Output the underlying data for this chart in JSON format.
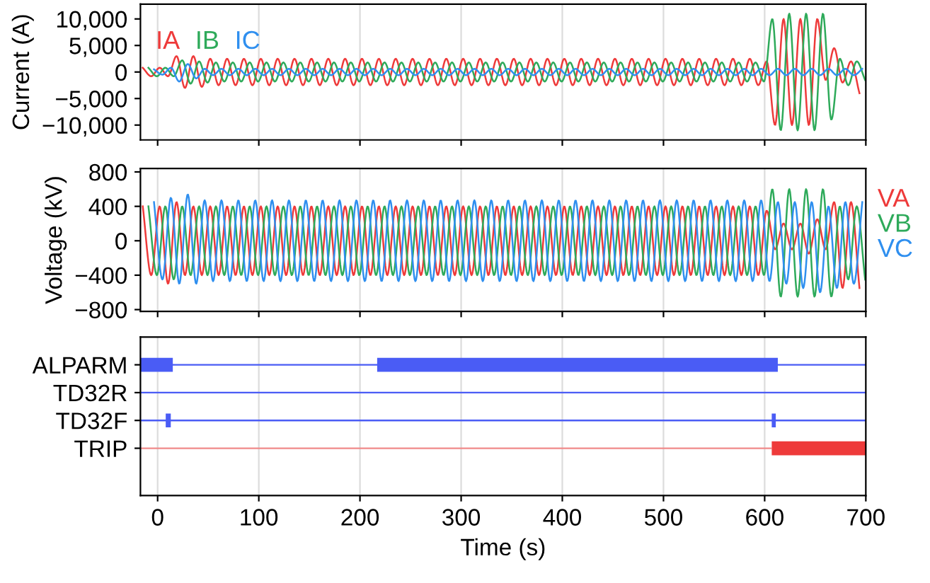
{
  "chart_data": [
    {
      "type": "line",
      "ylabel": "Current (A)",
      "xlim": [
        -17,
        700
      ],
      "xticks": [
        0,
        100,
        200,
        300,
        400,
        500,
        600,
        700
      ],
      "ylim": [
        -12800,
        12800
      ],
      "yticks": [
        {
          "value": 10000,
          "label": "10,000"
        },
        {
          "value": 5000,
          "label": "5,000"
        },
        0,
        {
          "value": -5000,
          "label": "−5,000"
        },
        {
          "value": -10000,
          "label": "−10,000"
        }
      ],
      "tick_labels": "y",
      "grid": "x",
      "legend": "top left",
      "series": [
        {
          "name": "IA",
          "color": "#ee3a3a",
          "x": [
            -14.7,
            -6.3,
            2,
            10.3,
            18.7,
            27,
            35.3,
            43.7,
            52,
            60.3,
            68.7,
            77,
            85.3,
            93.7,
            102,
            110.3,
            118.7,
            127,
            135.3,
            143.7,
            152,
            160.3,
            168.7,
            177,
            185.3,
            193.7,
            202,
            210.3,
            218.7,
            227,
            235.3,
            243.7,
            252,
            260.3,
            268.7,
            277,
            285.3,
            293.7,
            302,
            310.3,
            318.7,
            327,
            335.3,
            343.7,
            352,
            360.3,
            368.7,
            377,
            385.3,
            393.7,
            402,
            410.3,
            418.7,
            427,
            435.3,
            443.7,
            452,
            460.3,
            468.7,
            477,
            485.3,
            493.7,
            502,
            510.3,
            518.7,
            527,
            535.3,
            543.7,
            552,
            560.3,
            568.7,
            577,
            585.3,
            593.7,
            602,
            610.3,
            618.7,
            627,
            635.3,
            643.7,
            652,
            660.3,
            668.7,
            677,
            685.3,
            693.7
          ],
          "values": [
            800,
            -800,
            800,
            -800,
            3000,
            -3000,
            3000,
            -2800,
            2500,
            -2500,
            2500,
            -2500,
            2500,
            -2500,
            2500,
            -2500,
            2500,
            -2500,
            2500,
            -2500,
            2500,
            -2500,
            2500,
            -2500,
            2500,
            -2500,
            2500,
            -2500,
            2500,
            -2500,
            2500,
            -2500,
            2500,
            -2500,
            2500,
            -2500,
            2500,
            -2500,
            2500,
            -2500,
            2500,
            -2500,
            2500,
            -2500,
            2500,
            -2500,
            2500,
            -2500,
            2500,
            -2500,
            2500,
            -2500,
            2500,
            -2500,
            2500,
            -2500,
            2500,
            -2500,
            2500,
            -2500,
            2500,
            -2500,
            2500,
            -2500,
            2500,
            -2500,
            2500,
            -2500,
            2500,
            -2500,
            2500,
            -2500,
            2500,
            -2500,
            2000,
            -10000,
            10000,
            -10000,
            10000,
            -10000,
            10000,
            -1500,
            4500,
            -2000,
            2000,
            -4000
          ]
        },
        {
          "name": "IB",
          "color": "#2eaa5a",
          "x": [
            -9.1,
            -0.7,
            7.6,
            15.9,
            24.3,
            32.6,
            41,
            49.3,
            57.6,
            65.9,
            74.3,
            82.6,
            91,
            99.3,
            107.6,
            115.9,
            124.3,
            132.6,
            141,
            149.3,
            157.6,
            165.9,
            174.3,
            182.6,
            191,
            199.3,
            207.6,
            215.9,
            224.3,
            232.6,
            241,
            249.3,
            257.6,
            265.9,
            274.3,
            282.6,
            291,
            299.3,
            307.6,
            315.9,
            324.3,
            332.6,
            341,
            349.3,
            357.6,
            365.9,
            374.3,
            382.6,
            391,
            399.3,
            407.6,
            415.9,
            424.3,
            432.6,
            441,
            449.3,
            457.6,
            465.9,
            474.3,
            482.6,
            491,
            499.3,
            507.6,
            515.9,
            524.3,
            532.6,
            541,
            549.3,
            557.6,
            565.9,
            574.3,
            582.6,
            591,
            599.3,
            607.6,
            615.9,
            624.3,
            632.6,
            641,
            649.3,
            657.6,
            665.9,
            674.3,
            682.6,
            691,
            699.3
          ],
          "values": [
            800,
            -800,
            800,
            -800,
            2200,
            -2200,
            2000,
            -2000,
            1800,
            -1800,
            1800,
            -1800,
            1800,
            -1800,
            1800,
            -1800,
            1800,
            -1800,
            1800,
            -1800,
            1800,
            -1800,
            1800,
            -1800,
            1800,
            -1800,
            1800,
            -1800,
            1800,
            -1800,
            1800,
            -1800,
            1800,
            -1800,
            1800,
            -1800,
            1800,
            -1800,
            1800,
            -1800,
            1800,
            -1800,
            1800,
            -1800,
            1800,
            -1800,
            1800,
            -1800,
            1800,
            -1800,
            1800,
            -1800,
            1800,
            -1800,
            1800,
            -1800,
            1800,
            -1800,
            1800,
            -1800,
            1800,
            -1800,
            1800,
            -1800,
            1800,
            -1800,
            1800,
            -1800,
            1800,
            -1800,
            1800,
            -1800,
            1800,
            -1800,
            10000,
            -11000,
            11000,
            -11000,
            11000,
            -11000,
            11000,
            -9000,
            2500,
            -2500,
            2000,
            -1500
          ]
        },
        {
          "name": "IC",
          "color": "#2f8fef",
          "x": [
            -3.6,
            4.8,
            13.1,
            21.4,
            29.8,
            38.1,
            46.5,
            54.8,
            63.1,
            71.4,
            79.8,
            88.1,
            96.5,
            104.8,
            113.1,
            121.4,
            129.8,
            138.1,
            146.5,
            154.8,
            163.1,
            171.4,
            179.8,
            188.1,
            196.5,
            204.8,
            213.1,
            221.4,
            229.8,
            238.1,
            246.5,
            254.8,
            263.1,
            271.4,
            279.8,
            288.1,
            296.5,
            304.8,
            313.1,
            321.4,
            329.8,
            338.1,
            346.5,
            354.8,
            363.1,
            371.4,
            379.8,
            388.1,
            396.5,
            404.8,
            413.1,
            421.4,
            429.8,
            438.1,
            446.5,
            454.8,
            463.1,
            471.4,
            479.8,
            488.1,
            496.5,
            504.8,
            513.1,
            521.4,
            529.8,
            538.1,
            546.5,
            554.8,
            563.1,
            571.4,
            579.8,
            588.1,
            596.5,
            604.8,
            613.1,
            621.4,
            629.8,
            638.1,
            646.5,
            654.8,
            663.1,
            671.4,
            679.8,
            688.1,
            696.5
          ],
          "values": [
            500,
            -500,
            800,
            -1800,
            1500,
            -1200,
            600,
            -600,
            600,
            -600,
            600,
            -600,
            600,
            -600,
            600,
            -600,
            600,
            -600,
            600,
            -600,
            600,
            -600,
            600,
            -600,
            600,
            -600,
            600,
            -600,
            600,
            -600,
            600,
            -600,
            600,
            -600,
            600,
            -600,
            600,
            -600,
            600,
            -600,
            600,
            -600,
            600,
            -600,
            600,
            -600,
            600,
            -600,
            600,
            -600,
            600,
            -600,
            600,
            -600,
            600,
            -600,
            600,
            -600,
            600,
            -600,
            600,
            -600,
            600,
            -600,
            600,
            -600,
            600,
            -600,
            600,
            -600,
            600,
            -600,
            600,
            -600,
            600,
            -600,
            600,
            -600,
            600,
            -600,
            600,
            -600,
            600,
            -600,
            600
          ]
        }
      ]
    },
    {
      "type": "line",
      "ylabel": "Voltage (kV)",
      "xlim": [
        -17,
        700
      ],
      "xticks": [
        0,
        100,
        200,
        300,
        400,
        500,
        600,
        700
      ],
      "ylim": [
        -820,
        840
      ],
      "yticks": [
        800,
        400,
        0,
        {
          "value": -400,
          "label": "−400"
        },
        {
          "value": -800,
          "label": "−800"
        }
      ],
      "tick_labels": "y",
      "grid": "x",
      "legend": "right",
      "series": [
        {
          "name": "VA",
          "color": "#ee3a3a",
          "x": [
            -14.7,
            -6.3,
            2,
            10.3,
            18.7,
            27,
            35.3,
            43.7,
            52,
            60.3,
            68.7,
            77,
            85.3,
            93.7,
            102,
            110.3,
            118.7,
            127,
            135.3,
            143.7,
            152,
            160.3,
            168.7,
            177,
            185.3,
            193.7,
            202,
            210.3,
            218.7,
            227,
            235.3,
            243.7,
            252,
            260.3,
            268.7,
            277,
            285.3,
            293.7,
            302,
            310.3,
            318.7,
            327,
            335.3,
            343.7,
            352,
            360.3,
            368.7,
            377,
            385.3,
            393.7,
            402,
            410.3,
            418.7,
            427,
            435.3,
            443.7,
            452,
            460.3,
            468.7,
            477,
            485.3,
            493.7,
            502,
            510.3,
            518.7,
            527,
            535.3,
            543.7,
            552,
            560.3,
            568.7,
            577,
            585.3,
            593.7,
            602,
            610.3,
            618.7,
            627,
            635.3,
            643.7,
            652,
            660.3,
            668.7,
            677,
            685.3,
            693.7
          ],
          "values": [
            400,
            -400,
            400,
            -500,
            450,
            -400,
            400,
            -400,
            400,
            -400,
            400,
            -400,
            400,
            -400,
            400,
            -400,
            400,
            -400,
            400,
            -400,
            400,
            -400,
            400,
            -400,
            400,
            -400,
            400,
            -400,
            400,
            -400,
            400,
            -400,
            400,
            -400,
            400,
            -400,
            400,
            -400,
            400,
            -400,
            400,
            -400,
            400,
            -400,
            400,
            -400,
            400,
            -400,
            400,
            -400,
            400,
            -400,
            400,
            -400,
            400,
            -400,
            400,
            -400,
            400,
            -400,
            400,
            -400,
            400,
            -400,
            400,
            -400,
            400,
            -400,
            400,
            -400,
            400,
            -400,
            400,
            -400,
            350,
            -100,
            200,
            -100,
            200,
            -150,
            250,
            -100,
            450,
            -550,
            450,
            -550
          ]
        },
        {
          "name": "VB",
          "color": "#2eaa5a",
          "x": [
            -9.1,
            -0.7,
            7.6,
            15.9,
            24.3,
            32.6,
            41,
            49.3,
            57.6,
            65.9,
            74.3,
            82.6,
            91,
            99.3,
            107.6,
            115.9,
            124.3,
            132.6,
            141,
            149.3,
            157.6,
            165.9,
            174.3,
            182.6,
            191,
            199.3,
            207.6,
            215.9,
            224.3,
            232.6,
            241,
            249.3,
            257.6,
            265.9,
            274.3,
            282.6,
            291,
            299.3,
            307.6,
            315.9,
            324.3,
            332.6,
            341,
            349.3,
            357.6,
            365.9,
            374.3,
            382.6,
            391,
            399.3,
            407.6,
            415.9,
            424.3,
            432.6,
            441,
            449.3,
            457.6,
            465.9,
            474.3,
            482.6,
            491,
            499.3,
            507.6,
            515.9,
            524.3,
            532.6,
            541,
            549.3,
            557.6,
            565.9,
            574.3,
            582.6,
            591,
            599.3,
            607.6,
            615.9,
            624.3,
            632.6,
            641,
            649.3,
            657.6,
            665.9,
            674.3,
            682.6,
            691,
            699.3
          ],
          "values": [
            400,
            -400,
            400,
            -450,
            400,
            -400,
            400,
            -400,
            400,
            -400,
            400,
            -400,
            400,
            -400,
            400,
            -400,
            400,
            -400,
            400,
            -400,
            400,
            -400,
            400,
            -400,
            400,
            -400,
            400,
            -400,
            400,
            -400,
            400,
            -400,
            400,
            -400,
            400,
            -400,
            400,
            -400,
            400,
            -400,
            400,
            -400,
            400,
            -400,
            400,
            -400,
            400,
            -400,
            400,
            -400,
            400,
            -400,
            400,
            -400,
            400,
            -400,
            400,
            -400,
            400,
            -400,
            400,
            -400,
            400,
            -400,
            400,
            -400,
            400,
            -400,
            400,
            -400,
            400,
            -400,
            400,
            -400,
            600,
            -650,
            600,
            -650,
            600,
            -650,
            600,
            -650,
            400,
            -450,
            400,
            -450
          ]
        },
        {
          "name": "VC",
          "color": "#2f8fef",
          "x": [
            -3.6,
            4.8,
            13.1,
            21.4,
            29.8,
            38.1,
            46.5,
            54.8,
            63.1,
            71.4,
            79.8,
            88.1,
            96.5,
            104.8,
            113.1,
            121.4,
            129.8,
            138.1,
            146.5,
            154.8,
            163.1,
            171.4,
            179.8,
            188.1,
            196.5,
            204.8,
            213.1,
            221.4,
            229.8,
            238.1,
            246.5,
            254.8,
            263.1,
            271.4,
            279.8,
            288.1,
            296.5,
            304.8,
            313.1,
            321.4,
            329.8,
            338.1,
            346.5,
            354.8,
            363.1,
            371.4,
            379.8,
            388.1,
            396.5,
            404.8,
            413.1,
            421.4,
            429.8,
            438.1,
            446.5,
            454.8,
            463.1,
            471.4,
            479.8,
            488.1,
            496.5,
            504.8,
            513.1,
            521.4,
            529.8,
            538.1,
            546.5,
            554.8,
            563.1,
            571.4,
            579.8,
            588.1,
            596.5,
            604.8,
            613.1,
            621.4,
            629.8,
            638.1,
            646.5,
            654.8,
            663.1,
            671.4,
            679.8,
            688.1,
            696.5
          ],
          "values": [
            450,
            -450,
            500,
            -500,
            540,
            -500,
            470,
            -470,
            470,
            -470,
            470,
            -470,
            470,
            -470,
            470,
            -470,
            470,
            -470,
            470,
            -470,
            470,
            -470,
            470,
            -470,
            470,
            -470,
            470,
            -470,
            470,
            -470,
            470,
            -470,
            470,
            -470,
            470,
            -470,
            470,
            -470,
            470,
            -470,
            470,
            -470,
            470,
            -470,
            470,
            -470,
            470,
            -470,
            470,
            -470,
            470,
            -470,
            470,
            -470,
            470,
            -470,
            470,
            -470,
            470,
            -470,
            470,
            -470,
            470,
            -470,
            470,
            -470,
            470,
            -470,
            470,
            -470,
            470,
            -470,
            470,
            -470,
            450,
            -500,
            450,
            -550,
            450,
            -600,
            400,
            -550,
            450,
            -500,
            450
          ]
        }
      ]
    },
    {
      "type": "bar",
      "orientation": "horizontal",
      "xlabel": "Time (s)",
      "xlim": [
        -17,
        700
      ],
      "xticks": [
        0,
        100,
        200,
        300,
        400,
        500,
        600,
        700
      ],
      "grid": "x",
      "categories": [
        "ALPARM",
        "TD32R",
        "TD32F",
        "TRIP"
      ],
      "series": [
        {
          "colors": [
            "#4a5cf5",
            "#4a5cf5",
            "#4a5cf5",
            "#f08a8a"
          ],
          "base": [
            -17,
            -17,
            -17,
            -17
          ],
          "values": [
            717,
            717,
            717,
            624
          ]
        },
        {
          "colors": [
            "#4a5cf5",
            null,
            "#4a5cf5",
            "#ee3a3a"
          ],
          "base": [
            -17,
            null,
            8,
            607
          ],
          "values": [
            32,
            null,
            5,
            93
          ]
        },
        {
          "colors": [
            "#4a5cf5",
            null,
            "#4a5cf5",
            null
          ],
          "base": [
            217,
            null,
            607,
            null
          ],
          "values": [
            396,
            null,
            4,
            null
          ]
        }
      ]
    }
  ]
}
